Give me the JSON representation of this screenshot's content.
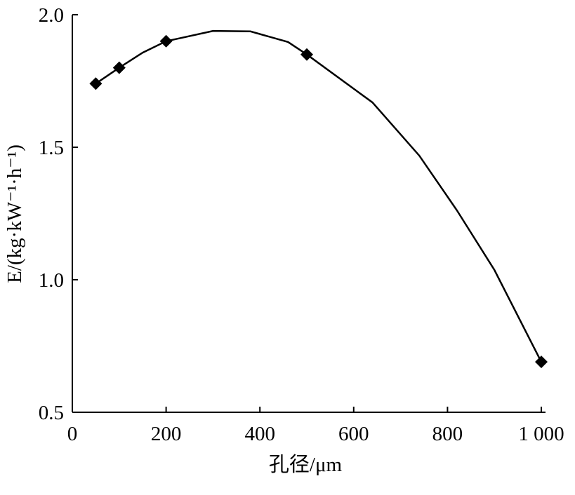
{
  "chart_data": {
    "type": "line",
    "x_label": "孔径/μm",
    "y_label": "E/(kg·kW⁻¹·h⁻¹)",
    "xlim": [
      0,
      1000
    ],
    "ylim": [
      0.5,
      2.0
    ],
    "xticks": [
      0,
      200,
      400,
      600,
      800,
      {
        "value": 1000,
        "label": "1 000"
      }
    ],
    "yticks": [
      0.5,
      {
        "value": 1.0,
        "label": "1.0"
      },
      1.5,
      {
        "value": 2.0,
        "label": "2.0"
      }
    ],
    "series": [
      {
        "mode": "markers",
        "marker": "diamond",
        "color": "#000000",
        "x": [
          50,
          100,
          200,
          500,
          1000
        ],
        "values": [
          1.74,
          1.8,
          1.9,
          1.85,
          0.69
        ]
      },
      {
        "mode": "lines",
        "color": "#000000",
        "x": [
          50,
          100,
          150,
          200,
          300,
          380,
          460,
          500,
          640,
          740,
          820,
          900,
          1000
        ],
        "values": [
          1.74,
          1.8,
          1.857,
          1.9,
          1.939,
          1.937,
          1.897,
          1.85,
          1.669,
          1.468,
          1.262,
          1.037,
          0.69
        ]
      }
    ]
  }
}
